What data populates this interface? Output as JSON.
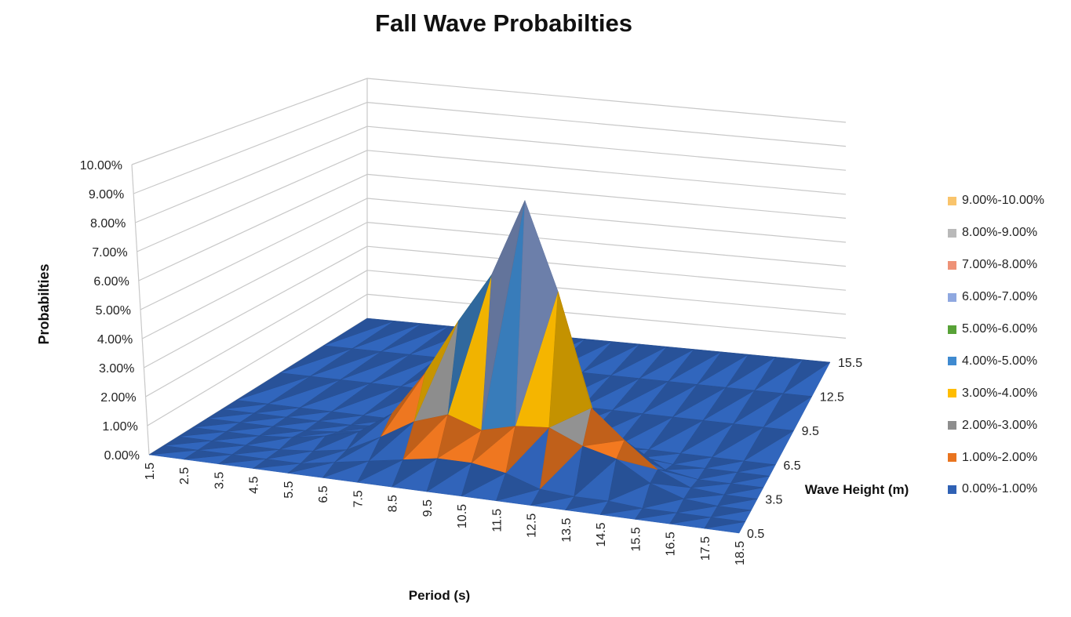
{
  "chart_data": {
    "type": "surface",
    "title": "Fall Wave Probabilties",
    "xlabel": "Period (s)",
    "ylabel": "Wave Height (m)",
    "zlabel": "Probabilties",
    "period_ticks": [
      "1.5",
      "2.5",
      "3.5",
      "4.5",
      "5.5",
      "6.5",
      "7.5",
      "8.5",
      "9.5",
      "10.5",
      "11.5",
      "12.5",
      "13.5",
      "14.5",
      "15.5",
      "16.5",
      "17.5",
      "18.5"
    ],
    "height_ticks": [
      "0.5",
      "3.5",
      "6.5",
      "9.5",
      "12.5",
      "15.5"
    ],
    "z_ticks": [
      "0.00%",
      "1.00%",
      "2.00%",
      "3.00%",
      "4.00%",
      "5.00%",
      "6.00%",
      "7.00%",
      "8.00%",
      "9.00%",
      "10.00%"
    ],
    "zlim": [
      0,
      10
    ],
    "grid": true,
    "legend_position": "right",
    "legend": [
      {
        "label": "9.00%-10.00%",
        "color": "#F9C46C"
      },
      {
        "label": "8.00%-9.00%",
        "color": "#B9B9B9"
      },
      {
        "label": "7.00%-8.00%",
        "color": "#EE9277"
      },
      {
        "label": "6.00%-7.00%",
        "color": "#8FA8E0"
      },
      {
        "label": "5.00%-6.00%",
        "color": "#58A237"
      },
      {
        "label": "4.00%-5.00%",
        "color": "#3F8AD0"
      },
      {
        "label": "3.00%-4.00%",
        "color": "#FFBD00"
      },
      {
        "label": "2.00%-3.00%",
        "color": "#8E8E8E"
      },
      {
        "label": "1.00%-2.00%",
        "color": "#E9741F"
      },
      {
        "label": "0.00%-1.00%",
        "color": "#2F61B4"
      }
    ],
    "surface_rows": [
      {
        "height": 0.5,
        "values": [
          0,
          0,
          0,
          0,
          0,
          0,
          0,
          0,
          0,
          0,
          0,
          0,
          0,
          0,
          0,
          0,
          0,
          0
        ]
      },
      {
        "height": 1.5,
        "values": [
          0,
          0,
          0,
          0,
          0,
          0.2,
          0.4,
          0.6,
          0.8,
          0.8,
          0.6,
          0.2,
          0.1,
          0.1,
          0,
          0,
          0,
          0
        ]
      },
      {
        "height": 2.5,
        "values": [
          0,
          0,
          0,
          0,
          0.1,
          0.3,
          0.9,
          1.6,
          2.0,
          1.6,
          1.9,
          2.0,
          1.5,
          1.2,
          0.5,
          0.1,
          0,
          0
        ]
      },
      {
        "height": 3.5,
        "values": [
          0,
          0,
          0,
          0.1,
          0.3,
          0.6,
          1.4,
          3.0,
          5.0,
          6.8,
          9.6,
          6.5,
          2.5,
          1.5,
          0.6,
          0.1,
          0,
          0
        ]
      },
      {
        "height": 4.5,
        "values": [
          0,
          0,
          0,
          0,
          0.1,
          0.3,
          0.8,
          1.8,
          3.0,
          4.0,
          3.2,
          2.2,
          1.2,
          0.6,
          0.2,
          0,
          0,
          0
        ]
      },
      {
        "height": 5.5,
        "values": [
          0,
          0,
          0,
          0,
          0,
          0.1,
          0.3,
          0.7,
          1.1,
          1.2,
          0.9,
          0.5,
          0.2,
          0.1,
          0,
          0,
          0,
          0
        ]
      },
      {
        "height": 6.5,
        "values": [
          0,
          0,
          0,
          0,
          0,
          0,
          0.1,
          0.2,
          0.3,
          0.3,
          0.2,
          0.1,
          0,
          0,
          0,
          0,
          0,
          0
        ]
      },
      {
        "height": 9.5,
        "values": [
          0,
          0,
          0,
          0,
          0,
          0,
          0,
          0,
          0,
          0,
          0,
          0,
          0,
          0,
          0,
          0,
          0,
          0
        ]
      },
      {
        "height": 12.5,
        "values": [
          0,
          0,
          0,
          0,
          0,
          0,
          0,
          0,
          0,
          0,
          0,
          0,
          0,
          0,
          0,
          0,
          0,
          0
        ]
      },
      {
        "height": 15.5,
        "values": [
          0,
          0,
          0,
          0,
          0,
          0,
          0,
          0,
          0,
          0,
          0,
          0,
          0,
          0,
          0,
          0,
          0,
          0
        ]
      }
    ]
  }
}
